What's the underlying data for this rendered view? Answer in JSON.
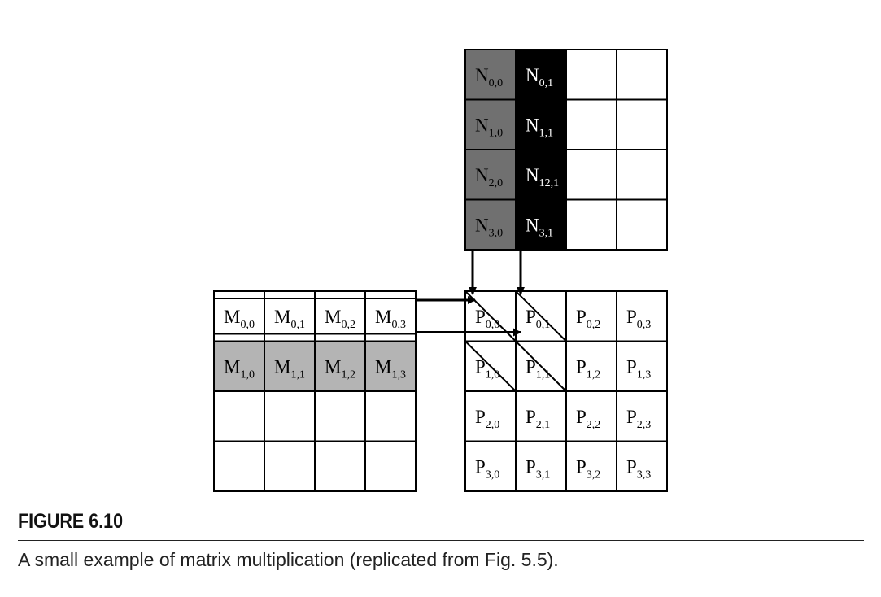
{
  "colors": {
    "n_col0": "#707070",
    "n_col1": "#000000",
    "m_row1": "#b4b4b4",
    "white": "#ffffff",
    "line": "#000000"
  },
  "matrix_n": {
    "cells": [
      [
        {
          "base": "N",
          "sub": "0,0"
        },
        {
          "base": "N",
          "sub": "0,1"
        },
        null,
        null
      ],
      [
        {
          "base": "N",
          "sub": "1,0"
        },
        {
          "base": "N",
          "sub": "1,1"
        },
        null,
        null
      ],
      [
        {
          "base": "N",
          "sub": "2,0"
        },
        {
          "base": "N",
          "sub": "12,1"
        },
        null,
        null
      ],
      [
        {
          "base": "N",
          "sub": "3,0"
        },
        {
          "base": "N",
          "sub": "3,1"
        },
        null,
        null
      ]
    ]
  },
  "matrix_m": {
    "cells": [
      [
        {
          "base": "M",
          "sub": "0,0"
        },
        {
          "base": "M",
          "sub": "0,1"
        },
        {
          "base": "M",
          "sub": "0,2"
        },
        {
          "base": "M",
          "sub": "0,3"
        }
      ],
      [
        {
          "base": "M",
          "sub": "1,0"
        },
        {
          "base": "M",
          "sub": "1,1"
        },
        {
          "base": "M",
          "sub": "1,2"
        },
        {
          "base": "M",
          "sub": "1,3"
        }
      ],
      [
        null,
        null,
        null,
        null
      ],
      [
        null,
        null,
        null,
        null
      ]
    ]
  },
  "matrix_p": {
    "cells": [
      [
        {
          "base": "P",
          "sub": "0,0"
        },
        {
          "base": "P",
          "sub": "0,1"
        },
        {
          "base": "P",
          "sub": "0,2"
        },
        {
          "base": "P",
          "sub": "0,3"
        }
      ],
      [
        {
          "base": "P",
          "sub": "1,0"
        },
        {
          "base": "P",
          "sub": "1,1"
        },
        {
          "base": "P",
          "sub": "1,2"
        },
        {
          "base": "P",
          "sub": "1,3"
        }
      ],
      [
        {
          "base": "P",
          "sub": "2,0"
        },
        {
          "base": "P",
          "sub": "2,1"
        },
        {
          "base": "P",
          "sub": "2,2"
        },
        {
          "base": "P",
          "sub": "2,3"
        }
      ],
      [
        {
          "base": "P",
          "sub": "3,0"
        },
        {
          "base": "P",
          "sub": "3,1"
        },
        {
          "base": "P",
          "sub": "3,2"
        },
        {
          "base": "P",
          "sub": "3,3"
        }
      ]
    ]
  },
  "figure": {
    "label": "FIGURE 6.10",
    "caption": "A small example of matrix multiplication (replicated from Fig. 5.5)."
  }
}
